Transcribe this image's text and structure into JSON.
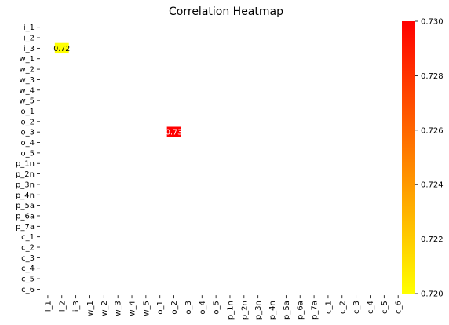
{
  "chart_data": {
    "type": "heatmap",
    "title": "Correlation Heatmap",
    "labels": [
      "i_1",
      "i_2",
      "i_3",
      "w_1",
      "w_2",
      "w_3",
      "w_4",
      "w_5",
      "o_1",
      "o_2",
      "o_3",
      "o_4",
      "o_5",
      "p_1n",
      "p_2n",
      "p_3n",
      "p_4n",
      "p_5a",
      "p_6a",
      "p_7a",
      "c_1",
      "c_2",
      "c_3",
      "c_4",
      "c_5",
      "c_6"
    ],
    "cells": [
      {
        "row": "i_3",
        "col": "i_2",
        "value": 0.72,
        "label": "0.72"
      },
      {
        "row": "o_3",
        "col": "o_2",
        "value": 0.73,
        "label": "0.73"
      }
    ],
    "colorbar": {
      "min": 0.72,
      "max": 0.73,
      "ticks": [
        "0.720",
        "0.722",
        "0.724",
        "0.726",
        "0.728",
        "0.730"
      ],
      "colors": [
        "#ffff00",
        "#ff0000"
      ]
    },
    "grid": false,
    "legend": "colorbar-right"
  }
}
